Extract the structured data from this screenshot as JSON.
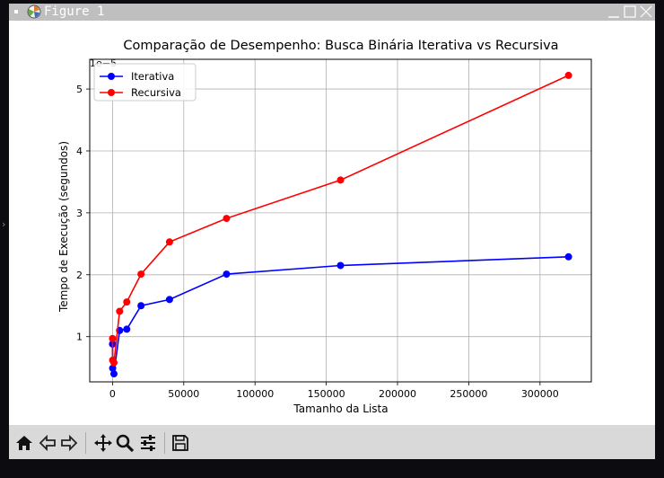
{
  "window": {
    "title": "Figure 1"
  },
  "toolbar": {
    "buttons": [
      "home-icon",
      "back-icon",
      "forward-icon",
      "pan-icon",
      "zoom-icon",
      "configure-subplots-icon",
      "save-icon"
    ]
  },
  "colors": {
    "iterativa": "#0000ff",
    "recursiva": "#ff0000",
    "grid": "#b0b0b0"
  },
  "chart_data": {
    "type": "line",
    "title": "Comparação de Desempenho: Busca Binária Iterativa vs Recursiva",
    "xlabel": "Tamanho da Lista",
    "ylabel": "Tempo de Execução (segundos)",
    "y_offset_label": "1e−5",
    "xlim": [
      -15990,
      336000
    ],
    "ylim": [
      0.27,
      5.48
    ],
    "xticks": [
      0,
      50000,
      100000,
      150000,
      200000,
      250000,
      300000
    ],
    "xtick_labels": [
      "0",
      "50000",
      "100000",
      "150000",
      "200000",
      "250000",
      "300000"
    ],
    "yticks": [
      1,
      2,
      3,
      4,
      5
    ],
    "ytick_labels": [
      "1",
      "2",
      "3",
      "4",
      "5"
    ],
    "y_scale": "values ×1e-5 seconds",
    "grid": true,
    "legend": "top-left",
    "x": [
      10,
      100,
      1000,
      5000,
      10000,
      20000,
      40000,
      80000,
      160000,
      320000
    ],
    "series": [
      {
        "name": "Iterativa",
        "color": "#0000ff",
        "values": [
          0.88,
          0.49,
          0.4,
          1.1,
          1.12,
          1.5,
          1.6,
          2.01,
          2.15,
          2.29
        ]
      },
      {
        "name": "Recursiva",
        "color": "#ff0000",
        "values": [
          0.97,
          0.62,
          0.58,
          1.41,
          1.56,
          2.01,
          2.53,
          2.91,
          3.53,
          5.22
        ]
      }
    ]
  }
}
